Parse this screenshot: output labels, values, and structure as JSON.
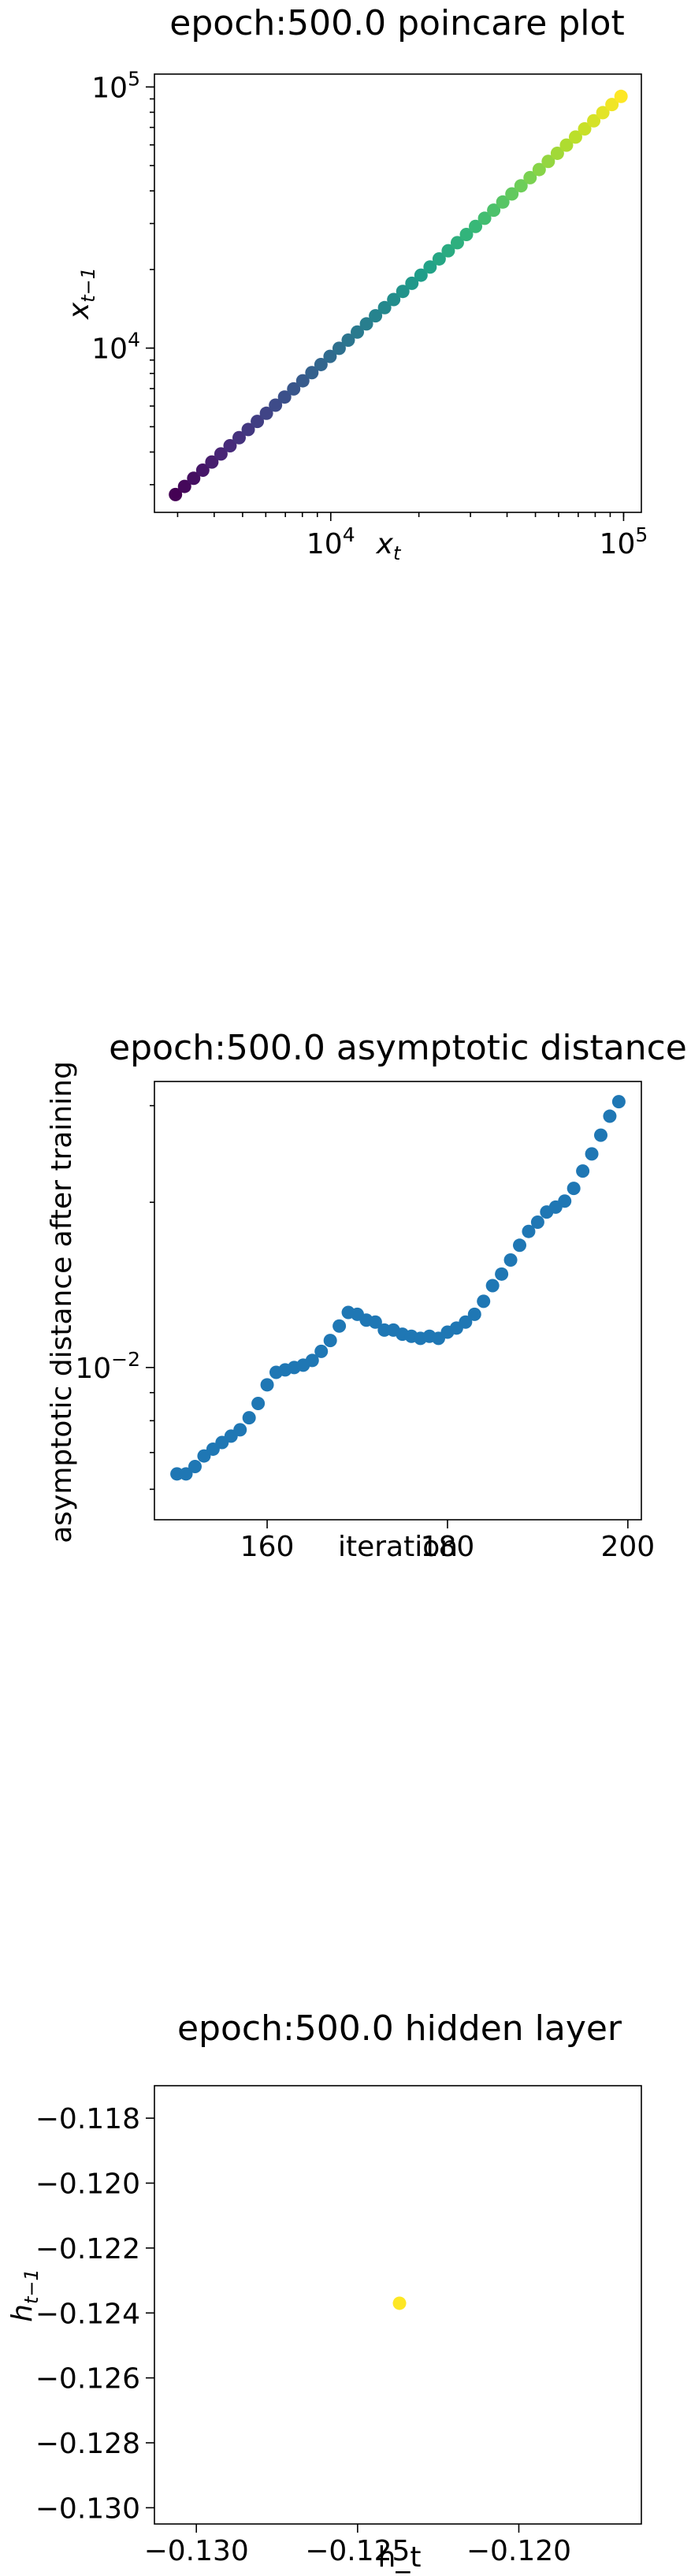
{
  "chart_data": [
    {
      "type": "scatter",
      "title": "epoch:500.0 poincare plot",
      "xlabel": "x",
      "xlabel_sub": "t",
      "ylabel": "x",
      "ylabel_sub": "t−1",
      "xscale": "log",
      "yscale": "log",
      "xlim": [
        2500,
        115000
      ],
      "ylim": [
        2350,
        112000
      ],
      "grid": false,
      "colormap": "viridis",
      "xticks": [
        {
          "value": 10000,
          "base": "10",
          "exp": "4"
        },
        {
          "value": 100000,
          "base": "10",
          "exp": "5"
        }
      ],
      "yticks": [
        {
          "value": 10000,
          "base": "10",
          "exp": "4"
        },
        {
          "value": 100000,
          "base": "10",
          "exp": "5"
        }
      ],
      "points": {
        "count": 50,
        "x_start": 2950,
        "x_end": 98000,
        "y_start": 2750,
        "y_end": 92000
      }
    },
    {
      "type": "scatter",
      "title": "epoch:500.0 asymptotic distance",
      "xlabel": "iteration",
      "ylabel": "asymptotic distance after training",
      "yscale": "log",
      "xlim": [
        147.5,
        201.5
      ],
      "ylim": [
        0.00528,
        0.0332
      ],
      "grid": false,
      "color": "#1f77b4",
      "xticks": [
        {
          "value": 160,
          "label": "160"
        },
        {
          "value": 180,
          "label": "180"
        },
        {
          "value": 200,
          "label": "200"
        }
      ],
      "yticks": [
        {
          "value": 0.01,
          "base": "10",
          "exp": "−2"
        }
      ],
      "x": [
        150,
        151,
        152,
        153,
        154,
        155,
        156,
        157,
        158,
        159,
        160,
        161,
        162,
        163,
        164,
        165,
        166,
        167,
        168,
        169,
        170,
        171,
        172,
        173,
        174,
        175,
        176,
        177,
        178,
        179,
        180,
        181,
        182,
        183,
        184,
        185,
        186,
        187,
        188,
        189,
        190,
        191,
        192,
        193,
        194,
        195,
        196,
        197,
        198,
        199
      ],
      "y": [
        0.0064,
        0.0064,
        0.0066,
        0.0069,
        0.0071,
        0.0073,
        0.0075,
        0.0077,
        0.0081,
        0.0086,
        0.0093,
        0.0098,
        0.0099,
        0.01,
        0.0101,
        0.0103,
        0.0107,
        0.0112,
        0.0119,
        0.0126,
        0.0125,
        0.0122,
        0.0121,
        0.0117,
        0.0117,
        0.0115,
        0.0114,
        0.0113,
        0.0114,
        0.0113,
        0.0116,
        0.0118,
        0.0121,
        0.0125,
        0.0132,
        0.0141,
        0.0148,
        0.0157,
        0.0167,
        0.0177,
        0.0184,
        0.0192,
        0.0196,
        0.0201,
        0.0212,
        0.0228,
        0.0245,
        0.0265,
        0.0287,
        0.0305
      ]
    },
    {
      "type": "scatter",
      "title": "epoch:500.0 hidden layer",
      "xlabel": "h_t",
      "ylabel": "h",
      "ylabel_sub": "t−1",
      "xlim": [
        -0.1313,
        -0.1162
      ],
      "ylim": [
        -0.1305,
        -0.117
      ],
      "grid": false,
      "color": "#fde725",
      "xticks": [
        {
          "value": -0.13,
          "label": "−0.130"
        },
        {
          "value": -0.125,
          "label": "−0.125"
        },
        {
          "value": -0.12,
          "label": "−0.120"
        }
      ],
      "yticks": [
        {
          "value": -0.118,
          "label": "−0.118"
        },
        {
          "value": -0.12,
          "label": "−0.120"
        },
        {
          "value": -0.122,
          "label": "−0.122"
        },
        {
          "value": -0.124,
          "label": "−0.124"
        },
        {
          "value": -0.126,
          "label": "−0.126"
        },
        {
          "value": -0.128,
          "label": "−0.128"
        },
        {
          "value": -0.13,
          "label": "−0.130"
        }
      ],
      "x": [
        -0.1237
      ],
      "y": [
        -0.1237
      ]
    }
  ]
}
